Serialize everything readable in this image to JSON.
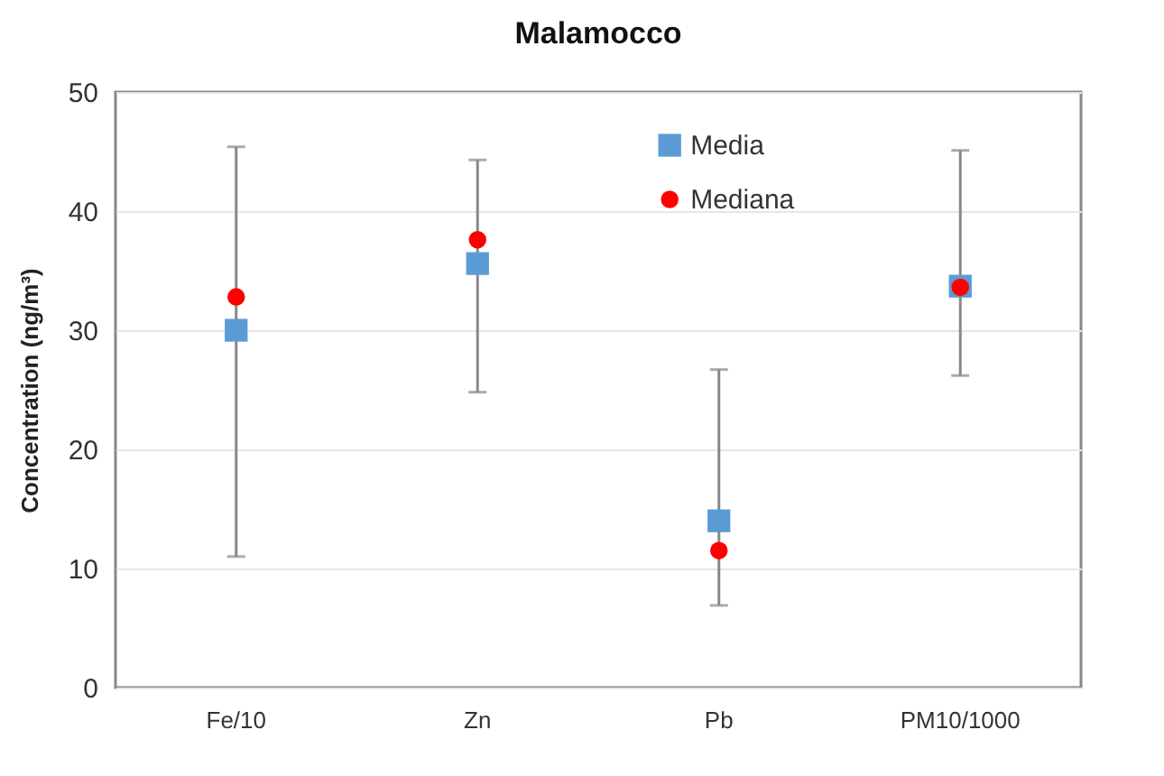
{
  "chart_data": {
    "type": "scatter",
    "title": "Malamocco",
    "ylabel": "Concentration (ng/m³)",
    "categories": [
      "Fe/10",
      "Zn",
      "Pb",
      "PM10/1000"
    ],
    "series": [
      {
        "name": "Media",
        "color": "#5b9bd5",
        "marker": "square",
        "values": [
          30.0,
          35.6,
          14.0,
          33.7
        ],
        "errors": [
          [
            11.0,
            45.4
          ],
          [
            24.8,
            44.3
          ],
          [
            6.9,
            26.7
          ],
          [
            26.2,
            45.1
          ]
        ]
      },
      {
        "name": "Mediana",
        "color": "#ff0000",
        "marker": "circle",
        "values": [
          32.8,
          37.6,
          11.5,
          33.6
        ]
      }
    ],
    "ylim": [
      0,
      50
    ],
    "yticks": [
      0,
      10,
      20,
      30,
      40,
      50
    ],
    "grid": "y",
    "legend": "top right"
  }
}
